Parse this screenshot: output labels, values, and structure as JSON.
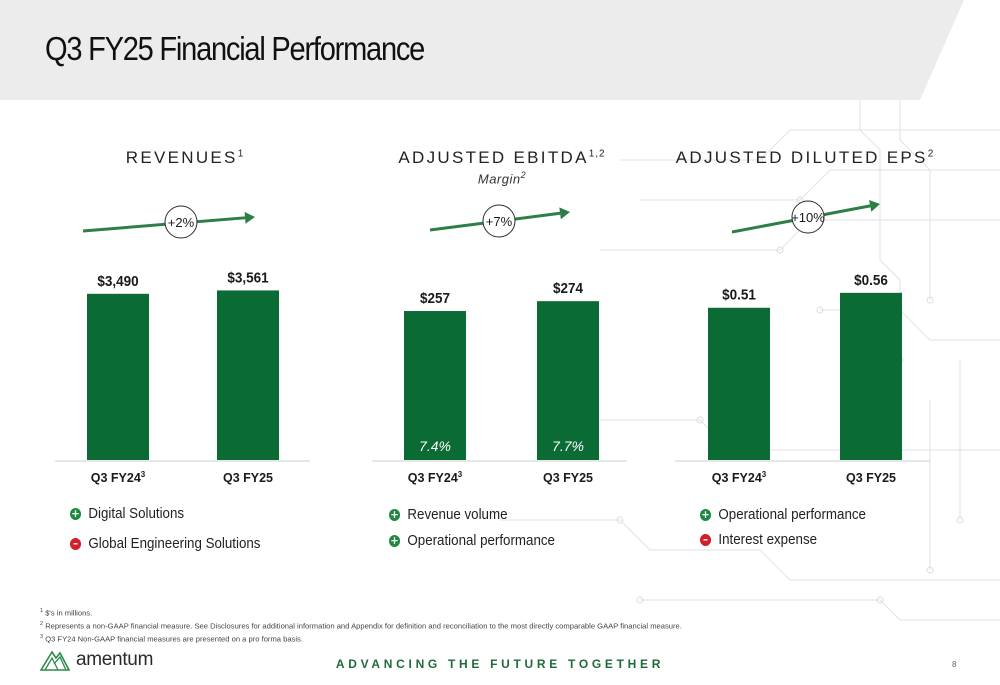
{
  "title": "Q3 FY25 Financial Performance",
  "tagline": "ADVANCING THE FUTURE TOGETHER",
  "page_number": "8",
  "logo_text": "amentum",
  "colors": {
    "bar": "#0b6b34",
    "arrow": "#2d7f47",
    "plus": "#1f8a3f",
    "minus": "#d0202a",
    "header_bg": "#ececec"
  },
  "footnotes": [
    {
      "num": "1",
      "text": "$'s in millions."
    },
    {
      "num": "2",
      "text": "Represents a non-GAAP financial measure. See Disclosures for additional information and Appendix for definition and reconciliation to the most directly comparable GAAP financial measure."
    },
    {
      "num": "3",
      "text": "Q3 FY24 Non-GAAP financial measures are presented on a pro forma basis."
    }
  ],
  "panels": [
    {
      "title": "REVENUES",
      "title_sup": "1",
      "subtitle": "",
      "subtitle_sup": "",
      "change": "+2%",
      "drivers": [
        {
          "sign": "+",
          "text": "Digital Solutions"
        },
        {
          "sign": "–",
          "text": "Global Engineering Solutions"
        }
      ]
    },
    {
      "title": "ADJUSTED EBITDA",
      "title_sup": "1,2",
      "subtitle": "Margin",
      "subtitle_sup": "2",
      "change": "+7%",
      "drivers": [
        {
          "sign": "+",
          "text": "Revenue volume"
        },
        {
          "sign": "+",
          "text": "Operational performance"
        }
      ]
    },
    {
      "title": "ADJUSTED DILUTED EPS",
      "title_sup": "2",
      "subtitle": "",
      "subtitle_sup": "",
      "change": "+10%",
      "drivers": [
        {
          "sign": "+",
          "text": "Operational performance"
        },
        {
          "sign": "–",
          "text": "Interest expense"
        }
      ]
    }
  ],
  "chart_data": [
    {
      "type": "bar",
      "title": "REVENUES",
      "categories": [
        "Q3 FY24",
        "Q3 FY25"
      ],
      "category_sups": [
        "3",
        ""
      ],
      "values": [
        3490,
        3561
      ],
      "value_labels": [
        "$3,490",
        "$3,561"
      ],
      "ylim": [
        0,
        4200
      ]
    },
    {
      "type": "bar",
      "title": "ADJUSTED EBITDA",
      "categories": [
        "Q3 FY24",
        "Q3 FY25"
      ],
      "category_sups": [
        "3",
        ""
      ],
      "values": [
        257,
        274
      ],
      "value_labels": [
        "$257",
        "$274"
      ],
      "margin_labels": [
        "7.4%",
        "7.7%"
      ],
      "ylim": [
        0,
        345
      ]
    },
    {
      "type": "bar",
      "title": "ADJUSTED DILUTED EPS",
      "categories": [
        "Q3 FY24",
        "Q3 FY25"
      ],
      "category_sups": [
        "3",
        ""
      ],
      "values": [
        0.51,
        0.56
      ],
      "value_labels": [
        "$0.51",
        "$0.56"
      ],
      "ylim": [
        0,
        0.67
      ]
    }
  ]
}
